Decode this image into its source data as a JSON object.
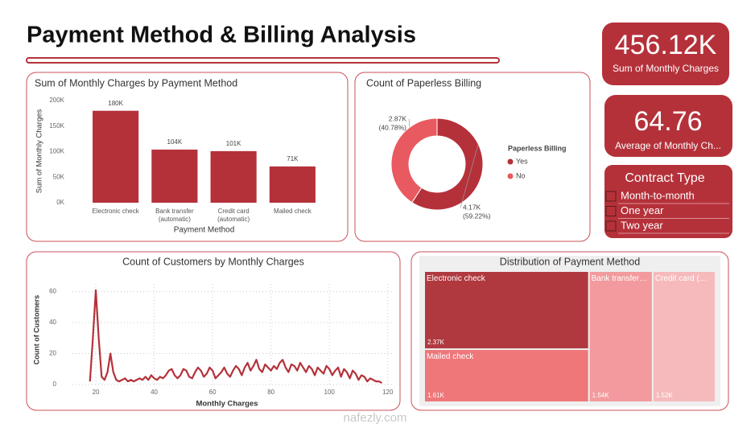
{
  "title": "Payment Method & Billing Analysis",
  "cards": [
    {
      "value": "456.12K",
      "label": "Sum of Monthly Charges"
    },
    {
      "value": "64.76",
      "label": "Average of Monthly Ch..."
    }
  ],
  "slicer": {
    "title": "Contract Type",
    "items": [
      "Month-to-month",
      "One year",
      "Two year"
    ]
  },
  "watermark": "nafezly.com",
  "chart_data": [
    {
      "type": "bar",
      "title": "Sum of Monthly Charges by Payment Method",
      "categories": [
        "Electronic check",
        "Bank transfer (automatic)",
        "Credit card (automatic)",
        "Mailed check"
      ],
      "values": [
        180000,
        104000,
        101000,
        71000
      ],
      "value_labels": [
        "180K",
        "104K",
        "101K",
        "71K"
      ],
      "color": "#b5313a",
      "x_label": "Payment Method",
      "y_label": "Sum of Monthly Charges",
      "ylim": [
        0,
        200000
      ],
      "yticks": [
        {
          "value": 0,
          "label": "0K"
        },
        {
          "value": 50000,
          "label": "50K"
        },
        {
          "value": 100000,
          "label": "100K"
        },
        {
          "value": 150000,
          "label": "150K"
        },
        {
          "value": 200000,
          "label": "200K"
        }
      ],
      "grid": false
    },
    {
      "type": "pie",
      "title": "Count of Paperless Billing",
      "legend_title": "Paperless Billing",
      "categories": [
        "Yes",
        "No"
      ],
      "values": [
        4170,
        2870
      ],
      "value_labels": [
        "4.17K",
        "2.87K"
      ],
      "percent_labels": [
        "(59.22%)",
        "(40.78%)"
      ],
      "colors": [
        "#b5313a",
        "#e85a60"
      ]
    },
    {
      "type": "line",
      "title": "Count of Customers by Monthly Charges",
      "x_label": "Monthly Charges",
      "y_label": "Count of Customers",
      "color": "#b5313a",
      "xlim": [
        12,
        122
      ],
      "xticks": [
        20,
        40,
        60,
        80,
        100,
        120
      ],
      "ylim": [
        0,
        65
      ],
      "yticks": [
        0,
        20,
        40,
        60
      ],
      "grid": true,
      "x": [
        18,
        19,
        20,
        21,
        22,
        23,
        24,
        25,
        26,
        27,
        28,
        29,
        30,
        31,
        32,
        33,
        34,
        35,
        36,
        37,
        38,
        39,
        40,
        41,
        42,
        43,
        44,
        45,
        46,
        47,
        48,
        49,
        50,
        51,
        52,
        53,
        54,
        55,
        56,
        57,
        58,
        59,
        60,
        61,
        62,
        63,
        64,
        65,
        66,
        67,
        68,
        69,
        70,
        71,
        72,
        73,
        74,
        75,
        76,
        77,
        78,
        79,
        80,
        81,
        82,
        83,
        84,
        85,
        86,
        87,
        88,
        89,
        90,
        91,
        92,
        93,
        94,
        95,
        96,
        97,
        98,
        99,
        100,
        101,
        102,
        103,
        104,
        105,
        106,
        107,
        108,
        109,
        110,
        111,
        112,
        113,
        114,
        115,
        116,
        117,
        118
      ],
      "values": [
        2,
        30,
        61,
        30,
        5,
        3,
        8,
        20,
        8,
        3,
        2,
        3,
        4,
        2,
        3,
        2,
        3,
        4,
        3,
        5,
        3,
        6,
        4,
        3,
        5,
        4,
        6,
        9,
        10,
        6,
        4,
        6,
        10,
        9,
        5,
        4,
        8,
        11,
        9,
        5,
        7,
        11,
        9,
        4,
        6,
        8,
        11,
        7,
        5,
        9,
        12,
        10,
        6,
        11,
        14,
        9,
        12,
        16,
        10,
        8,
        13,
        11,
        9,
        12,
        10,
        14,
        16,
        11,
        8,
        13,
        12,
        9,
        14,
        11,
        8,
        12,
        10,
        6,
        11,
        9,
        7,
        12,
        10,
        6,
        9,
        11,
        5,
        10,
        8,
        4,
        9,
        7,
        3,
        6,
        5,
        2,
        4,
        3,
        2,
        2,
        1
      ]
    },
    {
      "type": "treemap",
      "title": "Distribution of Payment Method",
      "categories": [
        "Electronic check",
        "Mailed check",
        "Bank transfer (automatic)",
        "Credit card (automatic)"
      ],
      "values": [
        2370,
        1610,
        1540,
        1520
      ],
      "value_labels": [
        "2.37K",
        "1.61K",
        "1.54K",
        "1.52K"
      ],
      "colors": [
        "#b0393f",
        "#ef7679",
        "#f29a9d",
        "#f6babc"
      ]
    }
  ]
}
